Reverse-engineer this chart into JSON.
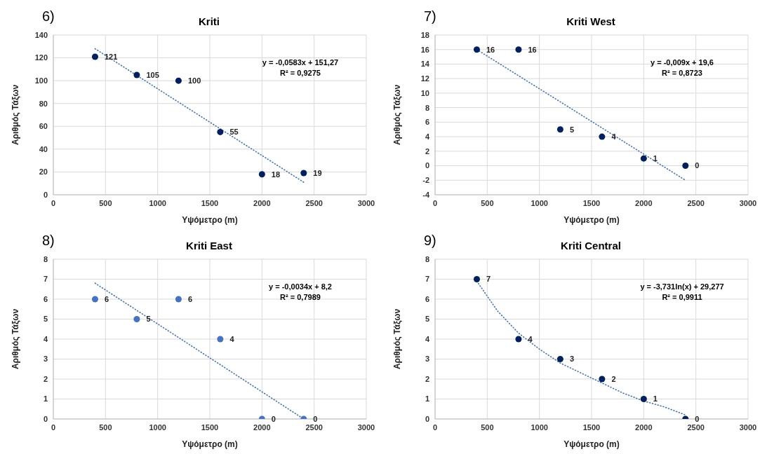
{
  "chart_data": [
    {
      "type": "scatter",
      "title": "Kriti",
      "xlabel": "Υψόμετρο (m)",
      "ylabel": "Αριθμός Τάξων",
      "x": [
        400,
        800,
        1200,
        1600,
        2000,
        2400
      ],
      "xlim": [
        0,
        3000
      ],
      "xticks": [
        0,
        500,
        1000,
        1500,
        2000,
        2500,
        3000
      ],
      "ylim": [
        0,
        140
      ],
      "yticks": [
        0,
        20,
        40,
        60,
        80,
        100,
        120,
        140
      ],
      "grid": true,
      "marker": "circle",
      "annotations": [
        "6)",
        "y = -0,0583x + 151,27",
        "R² = 0,9275"
      ],
      "series": [
        {
          "color": "#002060",
          "values": [
            121,
            105,
            100,
            55,
            18,
            19
          ],
          "value_labels": [
            "121",
            "105",
            "100",
            "55",
            "18",
            "19"
          ]
        },
        {
          "type": "line",
          "x": [
            400,
            2400
          ],
          "values": [
            128,
            11
          ],
          "color": "#4472c4",
          "line_style": "dotted",
          "marker": "none"
        }
      ]
    },
    {
      "type": "scatter",
      "title": "Kriti West",
      "xlabel": "Υψόμετρο (m)",
      "ylabel": "Αριθμός Τάξων",
      "x": [
        400,
        800,
        1200,
        1600,
        2000,
        2400
      ],
      "xlim": [
        0,
        3000
      ],
      "xticks": [
        0,
        500,
        1000,
        1500,
        2000,
        2500,
        3000
      ],
      "ylim": [
        -4,
        18
      ],
      "yticks": [
        -4,
        -2,
        0,
        2,
        4,
        6,
        8,
        10,
        12,
        14,
        16,
        18
      ],
      "grid": true,
      "marker": "circle",
      "annotations": [
        "7)",
        "y = -0,009x + 19,6",
        "R² = 0,8723"
      ],
      "series": [
        {
          "color": "#002060",
          "values": [
            16,
            16,
            5,
            4,
            1,
            0
          ],
          "value_labels": [
            "16",
            "16",
            "5",
            "4",
            "1",
            "0"
          ]
        },
        {
          "type": "line",
          "x": [
            400,
            2400
          ],
          "values": [
            16,
            -2
          ],
          "color": "#4472c4",
          "line_style": "dotted",
          "marker": "none"
        }
      ]
    },
    {
      "type": "scatter",
      "title": "Kriti East",
      "xlabel": "Υψόμετρο (m)",
      "ylabel": "Αριθμός Τάξων",
      "x": [
        400,
        800,
        1200,
        1600,
        2000,
        2400
      ],
      "xlim": [
        0,
        3000
      ],
      "xticks": [
        0,
        500,
        1000,
        1500,
        2000,
        2500,
        3000
      ],
      "ylim": [
        0,
        8
      ],
      "yticks": [
        0,
        1,
        2,
        3,
        4,
        5,
        6,
        7,
        8
      ],
      "grid": true,
      "marker": "circle",
      "annotations": [
        "8)",
        "y = -0,0034x + 8,2",
        "R² = 0,7989"
      ],
      "series": [
        {
          "color": "#4472c4",
          "values": [
            6,
            5,
            6,
            4,
            0,
            0
          ],
          "value_labels": [
            "6",
            "5",
            "6",
            "4",
            "0",
            "0"
          ]
        },
        {
          "type": "line",
          "x": [
            400,
            2400
          ],
          "values": [
            6.8,
            0
          ],
          "color": "#4472c4",
          "line_style": "dotted",
          "marker": "none"
        }
      ]
    },
    {
      "type": "scatter",
      "title": "Kriti Central",
      "xlabel": "Υψόμετρο (m)",
      "ylabel": "Αριθμός Τάξων",
      "x": [
        400,
        800,
        1200,
        1600,
        2000,
        2400
      ],
      "xlim": [
        0,
        3000
      ],
      "xticks": [
        0,
        500,
        1000,
        1500,
        2000,
        2500,
        3000
      ],
      "ylim": [
        0,
        8
      ],
      "yticks": [
        0,
        1,
        2,
        3,
        4,
        5,
        6,
        7,
        8
      ],
      "grid": true,
      "marker": "circle",
      "annotations": [
        "9)",
        "y = -3,731ln(x) + 29,277",
        "R² = 0,9911"
      ],
      "series": [
        {
          "color": "#002060",
          "values": [
            7,
            4,
            3,
            2,
            1,
            0
          ],
          "value_labels": [
            "7",
            "4",
            "3",
            "2",
            "1",
            "0"
          ]
        },
        {
          "type": "line",
          "x": [
            400,
            600,
            800,
            1000,
            1200,
            1400,
            1600,
            1800,
            2000,
            2200,
            2400
          ],
          "values": [
            6.9,
            5.4,
            4.3,
            3.5,
            2.8,
            2.3,
            1.8,
            1.3,
            0.9,
            0.6,
            0.2
          ],
          "color": "#4472c4",
          "line_style": "dotted",
          "marker": "none"
        }
      ]
    }
  ]
}
